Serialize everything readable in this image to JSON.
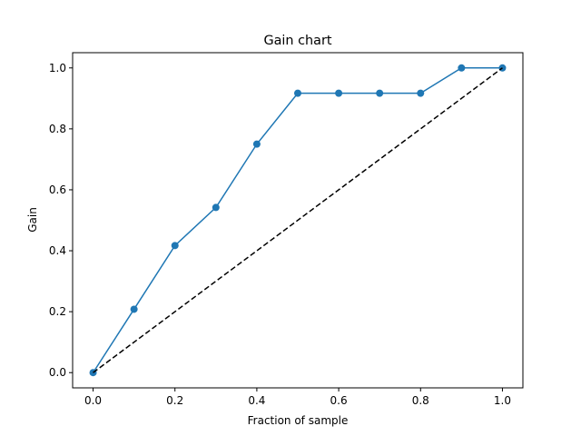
{
  "chart_data": {
    "type": "line",
    "title": "Gain chart",
    "xlabel": "Fraction of sample",
    "ylabel": "Gain",
    "xlim": [
      -0.05,
      1.05
    ],
    "ylim": [
      -0.05,
      1.05
    ],
    "xticks": [
      0.0,
      0.2,
      0.4,
      0.6,
      0.8,
      1.0
    ],
    "yticks": [
      0.0,
      0.2,
      0.4,
      0.6,
      0.8,
      1.0
    ],
    "xtick_labels": [
      "0.0",
      "0.2",
      "0.4",
      "0.6",
      "0.8",
      "1.0"
    ],
    "ytick_labels": [
      "0.0",
      "0.2",
      "0.4",
      "0.6",
      "0.8",
      "1.0"
    ],
    "grid": false,
    "series": [
      {
        "style": "solid line with circle markers",
        "color": "#1f77b4",
        "x": [
          0.0,
          0.1,
          0.2,
          0.3,
          0.4,
          0.5,
          0.6,
          0.7,
          0.8,
          0.9,
          1.0
        ],
        "y": [
          0.0,
          0.208,
          0.417,
          0.542,
          0.75,
          0.917,
          0.917,
          0.917,
          0.917,
          1.0,
          1.0
        ]
      },
      {
        "style": "dashed line",
        "color": "#000000",
        "x": [
          0.0,
          1.0
        ],
        "y": [
          0.0,
          1.0
        ]
      }
    ]
  }
}
